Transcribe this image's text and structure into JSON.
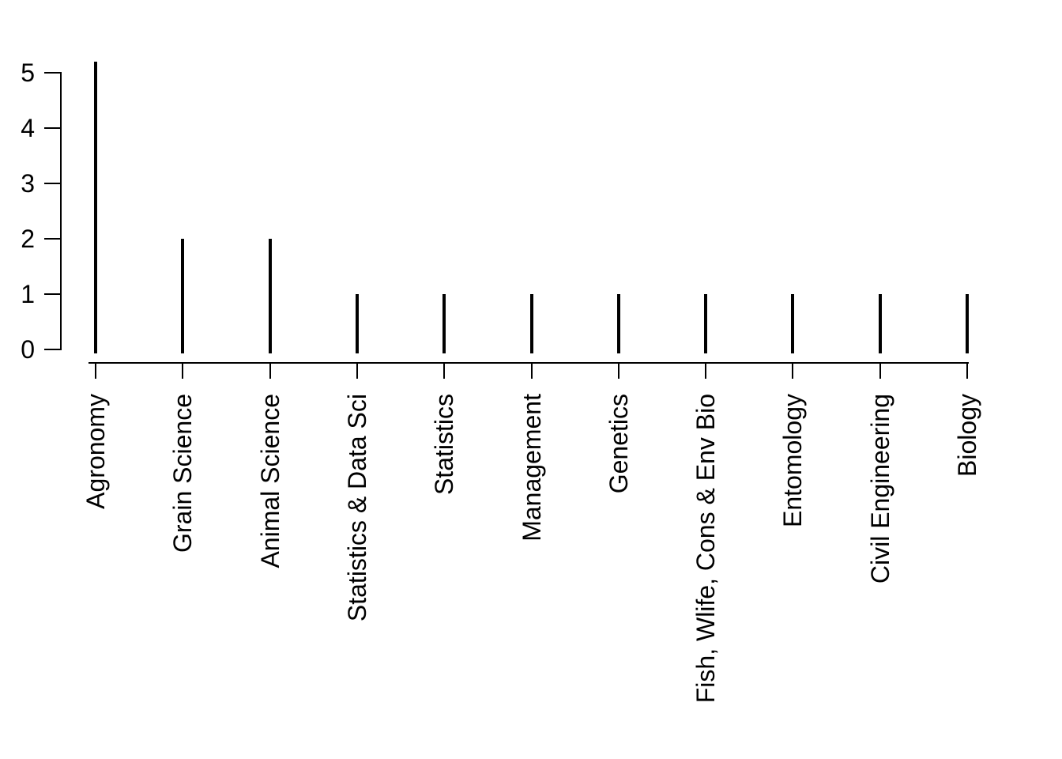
{
  "chart_data": {
    "type": "bar",
    "subtype": "spike-plot",
    "title": "",
    "xlabel": "",
    "ylabel": "",
    "categories": [
      "Agronomy",
      "Grain Science",
      "Animal Science",
      "Statistics & Data Sci",
      "Statistics",
      "Management",
      "Genetics",
      "Fish, Wlife, Cons & Env Bio",
      "Entomology",
      "Civil Engineering",
      "Biology"
    ],
    "values": [
      5.2,
      2,
      2,
      1,
      1,
      1,
      1,
      1,
      1,
      1,
      1
    ],
    "yticks": [
      0,
      1,
      2,
      3,
      4,
      5
    ],
    "ytick_labels": [
      "0",
      "1",
      "2",
      "3",
      "4",
      "5"
    ],
    "ylim": [
      0,
      5.2
    ],
    "grid": false,
    "legend_position": "none",
    "colors": {
      "foreground": "#000000",
      "background": "#ffffff"
    }
  }
}
